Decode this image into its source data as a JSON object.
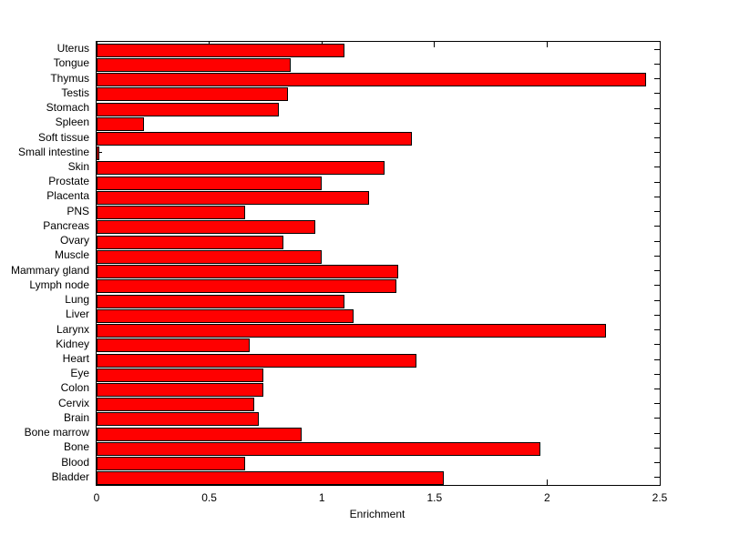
{
  "figure": {
    "background": "#ffffff",
    "axis_color": "#000000"
  },
  "chart_data": {
    "type": "bar",
    "orientation": "horizontal",
    "title": "",
    "xlabel": "Enrichment",
    "ylabel": "",
    "xlim": [
      0,
      2.5
    ],
    "xticks": [
      0,
      0.5,
      1,
      1.5,
      2,
      2.5
    ],
    "xtick_labels": [
      "0",
      "0.5",
      "1",
      "1.5",
      "2",
      "2.5"
    ],
    "grid": false,
    "legend": "none",
    "bar_color": "#ff0000",
    "bar_edge_color": "#000000",
    "category_order": "top-to-bottom",
    "categories": [
      "Uterus",
      "Tongue",
      "Thymus",
      "Testis",
      "Stomach",
      "Spleen",
      "Soft tissue",
      "Small intestine",
      "Skin",
      "Prostate",
      "Placenta",
      "PNS",
      "Pancreas",
      "Ovary",
      "Muscle",
      "Mammary gland",
      "Lymph node",
      "Lung",
      "Liver",
      "Larynx",
      "Kidney",
      "Heart",
      "Eye",
      "Colon",
      "Cervix",
      "Brain",
      "Bone marrow",
      "Bone",
      "Blood",
      "Bladder"
    ],
    "values": [
      1.1,
      0.86,
      2.44,
      0.85,
      0.81,
      0.21,
      1.4,
      0.005,
      1.28,
      1.0,
      1.21,
      0.66,
      0.97,
      0.83,
      1.0,
      1.34,
      1.33,
      1.1,
      1.14,
      2.26,
      0.68,
      1.42,
      0.74,
      0.74,
      0.7,
      0.72,
      0.91,
      1.97,
      0.66,
      1.54
    ]
  }
}
